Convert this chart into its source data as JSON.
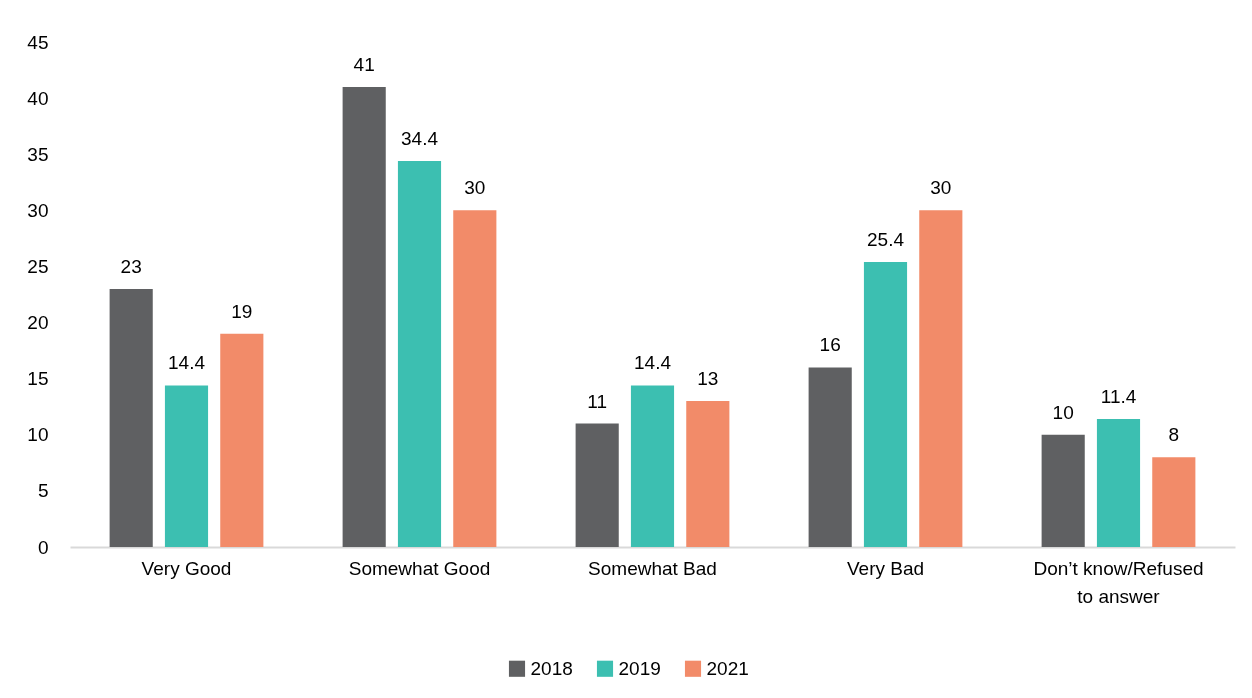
{
  "chart_data": {
    "type": "bar",
    "categories": [
      "Very Good",
      "Somewhat Good",
      "Somewhat Bad",
      "Very Bad",
      "Don’t know/Refused to answer"
    ],
    "series": [
      {
        "name": "2018",
        "color": "#5f6062",
        "values": [
          23,
          41,
          11,
          16,
          10
        ]
      },
      {
        "name": "2019",
        "color": "#3cbfb1",
        "values": [
          14.4,
          34.4,
          14.4,
          25.4,
          11.4
        ]
      },
      {
        "name": "2021",
        "color": "#f28b69",
        "values": [
          19,
          30,
          13,
          30,
          8
        ]
      }
    ],
    "ylim": [
      0,
      45
    ],
    "yticks": [
      0,
      5,
      10,
      15,
      20,
      25,
      30,
      35,
      40,
      45
    ],
    "grid": false,
    "legend": "bottom",
    "data_labels": true
  }
}
